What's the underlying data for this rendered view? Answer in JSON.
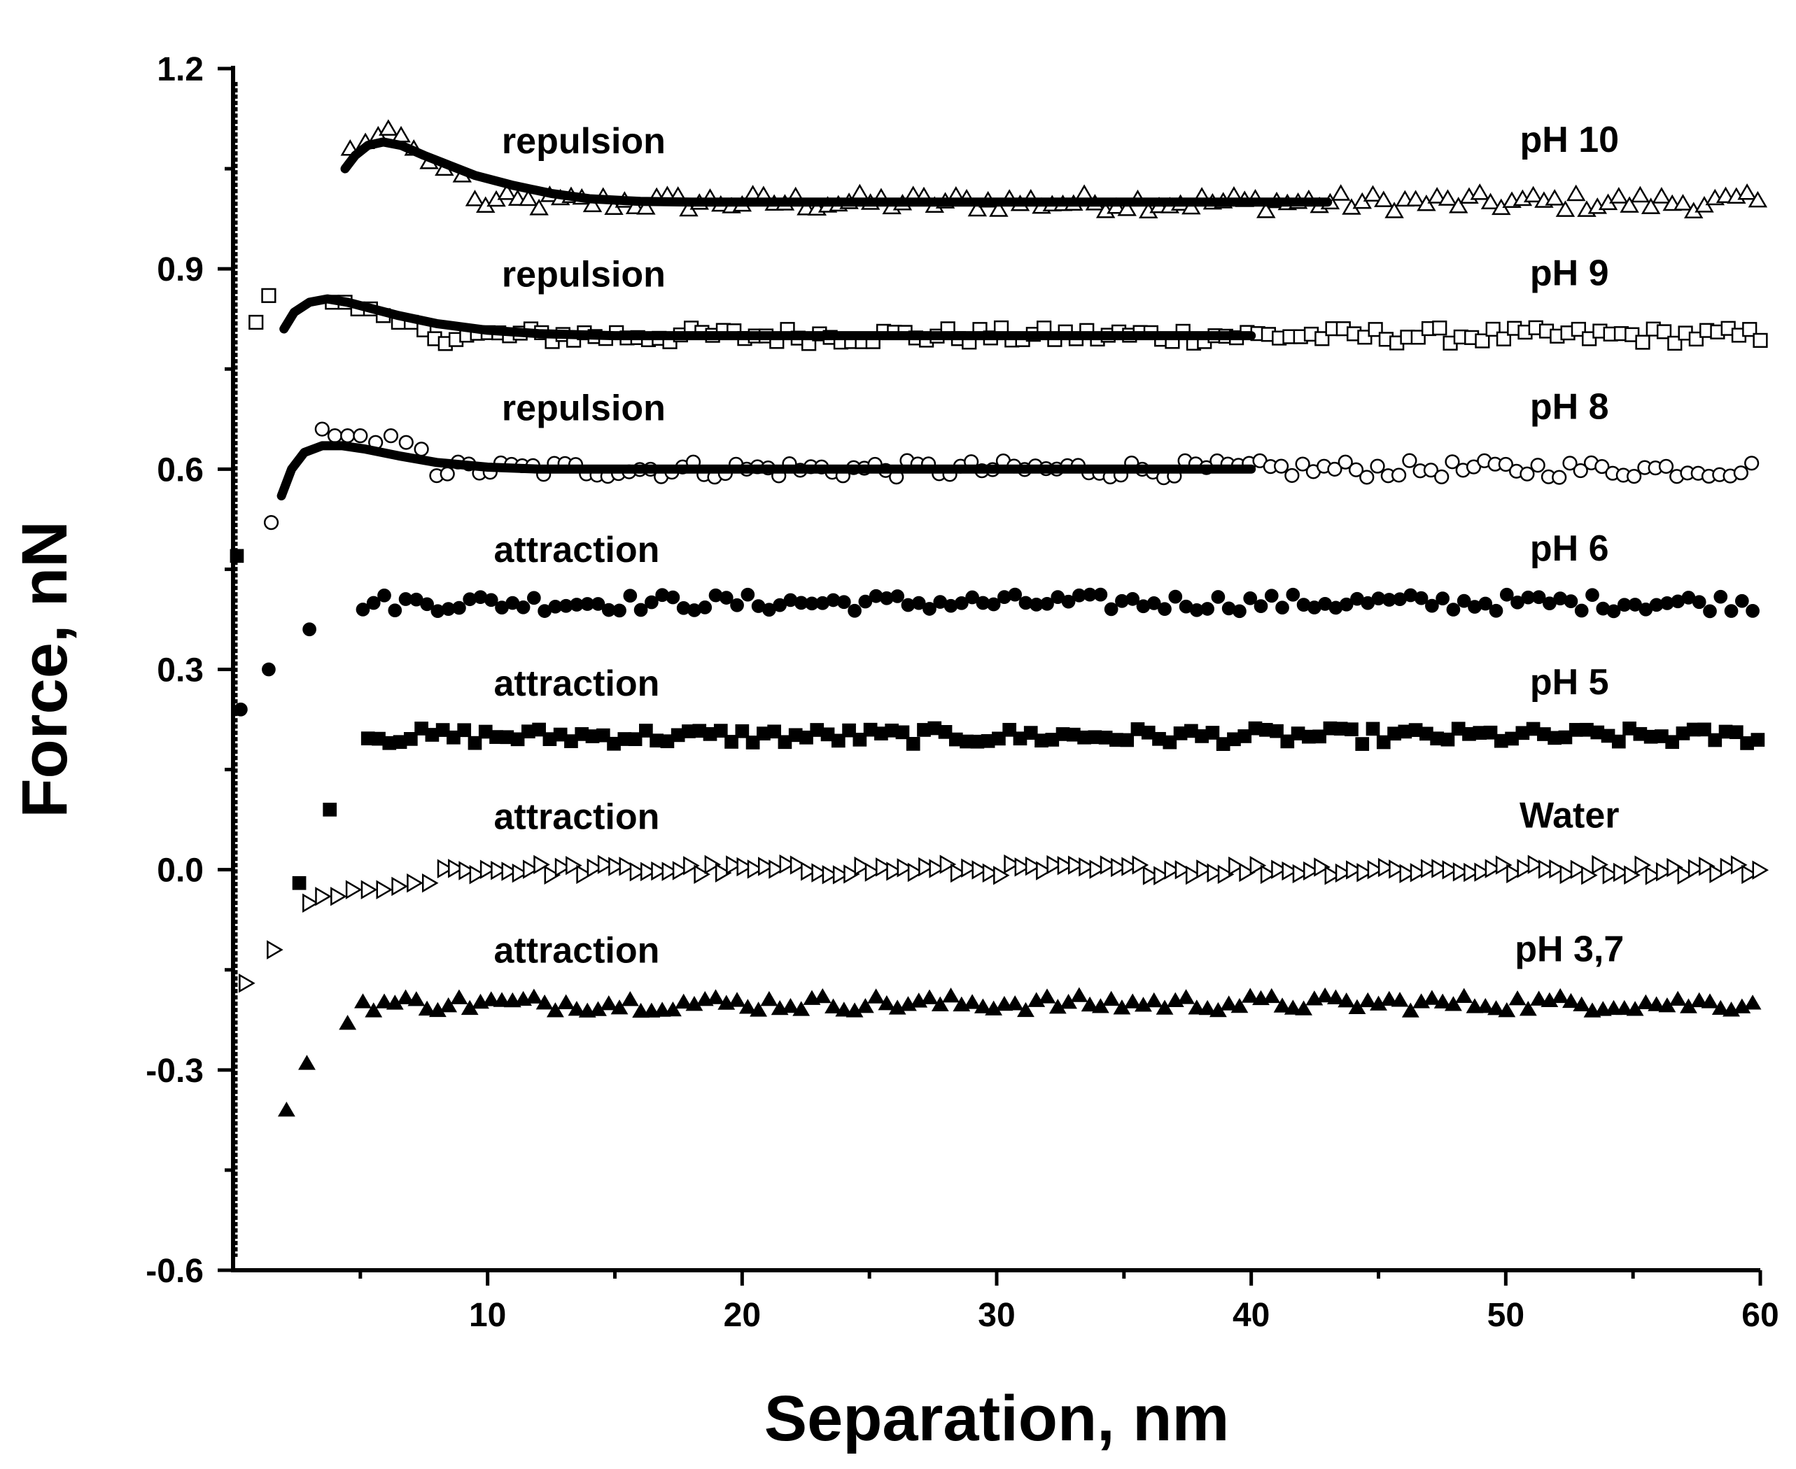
{
  "chart_data": {
    "type": "scatter",
    "title": "",
    "xlabel": "Separation, nm",
    "ylabel": "Force, nN",
    "xlim": [
      0,
      60
    ],
    "ylim": [
      -0.6,
      1.2
    ],
    "xticks": [
      10,
      20,
      30,
      40,
      50,
      60
    ],
    "xtick_labels": [
      "10",
      "20",
      "30",
      "40",
      "50",
      "60"
    ],
    "yticks": [
      1.2,
      0.9,
      0.6,
      0.3,
      0.0,
      -0.3,
      -0.6
    ],
    "ytick_labels": [
      "1.2",
      "0.9",
      "0.6",
      "0.3",
      "0.0",
      "-0.3",
      "-0.6"
    ],
    "grid": false,
    "series": [
      {
        "name": "pH 10",
        "marker": "triangle-up-open",
        "offset": 1.0,
        "noise": 0.014,
        "annotation": "repulsion",
        "points": [
          [
            4.6,
            1.08
          ],
          [
            5.2,
            1.09
          ],
          [
            5.7,
            1.1
          ],
          [
            6.1,
            1.11
          ],
          [
            6.6,
            1.1
          ],
          [
            7.1,
            1.08
          ],
          [
            7.7,
            1.06
          ],
          [
            8.3,
            1.05
          ],
          [
            9.0,
            1.04
          ]
        ],
        "tail_start": 9.5,
        "tail_end": 60,
        "step": 0.42,
        "fit": [
          [
            4.4,
            1.05
          ],
          [
            4.8,
            1.07
          ],
          [
            5.3,
            1.085
          ],
          [
            5.9,
            1.09
          ],
          [
            6.6,
            1.085
          ],
          [
            7.5,
            1.07
          ],
          [
            8.5,
            1.055
          ],
          [
            9.5,
            1.04
          ],
          [
            11,
            1.025
          ],
          [
            12.5,
            1.013
          ],
          [
            14,
            1.005
          ],
          [
            16,
            1.001
          ],
          [
            18,
            1.0
          ],
          [
            43,
            1.0
          ]
        ]
      },
      {
        "name": "pH 9",
        "marker": "square-open",
        "offset": 0.8,
        "noise": 0.012,
        "annotation": "repulsion",
        "points": [
          [
            0.9,
            0.82
          ],
          [
            1.4,
            0.86
          ],
          [
            3.9,
            0.85
          ],
          [
            4.4,
            0.85
          ],
          [
            4.9,
            0.84
          ],
          [
            5.4,
            0.84
          ],
          [
            5.9,
            0.83
          ],
          [
            6.5,
            0.82
          ],
          [
            7.0,
            0.82
          ]
        ],
        "tail_start": 7.5,
        "tail_end": 60,
        "step": 0.42,
        "fit": [
          [
            2.0,
            0.81
          ],
          [
            2.4,
            0.835
          ],
          [
            3.0,
            0.85
          ],
          [
            3.7,
            0.855
          ],
          [
            4.5,
            0.85
          ],
          [
            5.5,
            0.84
          ],
          [
            6.5,
            0.83
          ],
          [
            8,
            0.818
          ],
          [
            10,
            0.808
          ],
          [
            12,
            0.803
          ],
          [
            15,
            0.8
          ],
          [
            18,
            0.8
          ],
          [
            40,
            0.8
          ]
        ]
      },
      {
        "name": "pH 8",
        "marker": "circle-open",
        "offset": 0.6,
        "noise": 0.013,
        "annotation": "repulsion",
        "points": [
          [
            1.5,
            0.52
          ],
          [
            3.5,
            0.66
          ],
          [
            4.0,
            0.65
          ],
          [
            4.5,
            0.65
          ],
          [
            5.0,
            0.65
          ],
          [
            5.6,
            0.64
          ],
          [
            6.2,
            0.65
          ],
          [
            6.8,
            0.64
          ],
          [
            7.4,
            0.63
          ]
        ],
        "tail_start": 8.0,
        "tail_end": 60,
        "step": 0.42,
        "fit": [
          [
            1.9,
            0.56
          ],
          [
            2.3,
            0.6
          ],
          [
            2.8,
            0.625
          ],
          [
            3.5,
            0.635
          ],
          [
            4.3,
            0.635
          ],
          [
            5.2,
            0.63
          ],
          [
            6.5,
            0.62
          ],
          [
            8,
            0.61
          ],
          [
            10,
            0.603
          ],
          [
            12,
            0.6
          ],
          [
            15,
            0.6
          ],
          [
            40,
            0.6
          ]
        ]
      },
      {
        "name": "pH 6",
        "marker": "circle-filled",
        "offset": 0.4,
        "noise": 0.013,
        "annotation": "attraction",
        "points": [
          [
            0.3,
            0.24
          ],
          [
            1.4,
            0.3
          ],
          [
            3.0,
            0.36
          ]
        ],
        "tail_start": 5.1,
        "tail_end": 60,
        "step": 0.42,
        "fit": []
      },
      {
        "name": "pH 5",
        "marker": "square-filled",
        "offset": 0.2,
        "noise": 0.012,
        "annotation": "attraction",
        "points": [
          [
            0.15,
            0.47
          ],
          [
            2.6,
            -0.02
          ],
          [
            3.8,
            0.09
          ]
        ],
        "tail_start": 5.3,
        "tail_end": 60,
        "step": 0.42,
        "fit": []
      },
      {
        "name": "Water",
        "marker": "triangle-right-open",
        "offset": 0.0,
        "noise": 0.009,
        "annotation": "attraction",
        "points": [
          [
            0.5,
            -0.17
          ],
          [
            1.6,
            -0.12
          ],
          [
            3.0,
            -0.05
          ],
          [
            3.5,
            -0.04
          ],
          [
            4.1,
            -0.04
          ],
          [
            4.7,
            -0.03
          ],
          [
            5.3,
            -0.03
          ],
          [
            5.9,
            -0.03
          ],
          [
            6.5,
            -0.025
          ],
          [
            7.1,
            -0.02
          ],
          [
            7.7,
            -0.02
          ]
        ],
        "tail_start": 8.3,
        "tail_end": 60,
        "step": 0.42,
        "fit": []
      },
      {
        "name": "pH 3,7",
        "marker": "triangle-up-filled",
        "offset": -0.2,
        "noise": 0.012,
        "annotation": "attraction",
        "points": [
          [
            2.1,
            -0.36
          ],
          [
            2.9,
            -0.29
          ],
          [
            4.5,
            -0.23
          ]
        ],
        "tail_start": 5.1,
        "tail_end": 60,
        "step": 0.42,
        "fit": []
      }
    ]
  }
}
